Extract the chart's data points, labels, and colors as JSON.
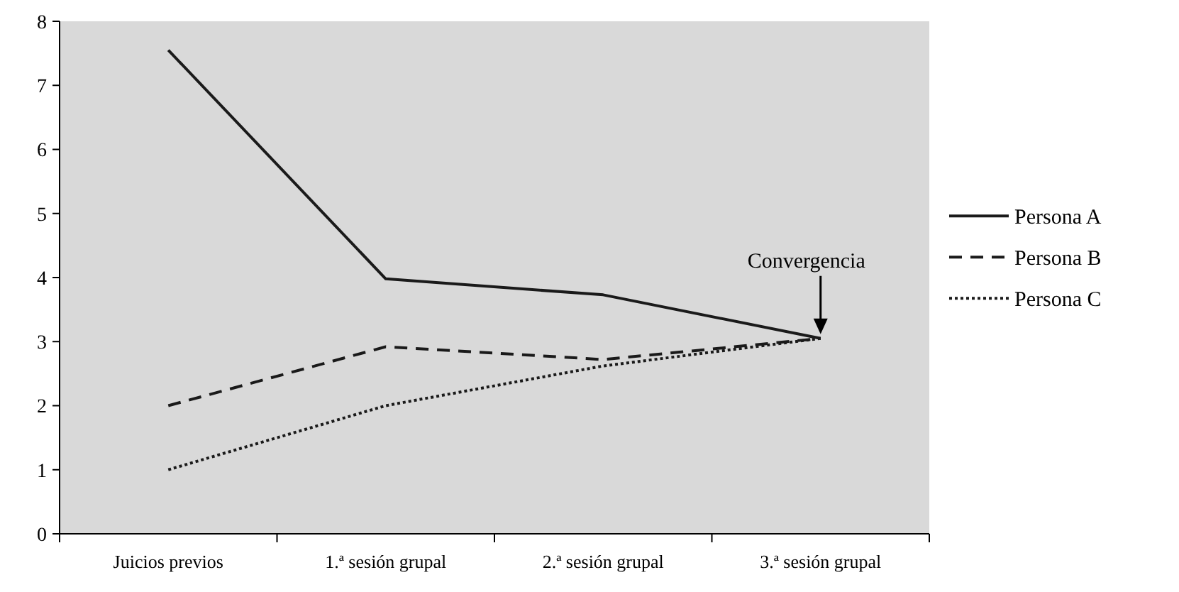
{
  "chart_data": {
    "type": "line",
    "categories": [
      "Juicios previos",
      "1.ª sesión grupal",
      "2.ª sesión grupal",
      "3.ª sesión grupal"
    ],
    "series": [
      {
        "name": "Persona A",
        "color": "#1a1a1a",
        "line_style": "solid",
        "values": [
          7.55,
          3.98,
          3.73,
          3.05
        ]
      },
      {
        "name": "Persona B",
        "color": "#1a1a1a",
        "line_style": "dashed",
        "values": [
          2.0,
          2.92,
          2.72,
          3.05
        ]
      },
      {
        "name": "Persona C",
        "color": "#1a1a1a",
        "line_style": "dotted",
        "values": [
          1.0,
          2.0,
          2.62,
          3.05
        ]
      }
    ],
    "ylim": [
      0,
      8
    ],
    "yticks": [
      0,
      1,
      2,
      3,
      4,
      5,
      6,
      7,
      8
    ],
    "grid": false,
    "legend": "right",
    "marker": "none",
    "annotations": [
      "Convergencia"
    ]
  }
}
